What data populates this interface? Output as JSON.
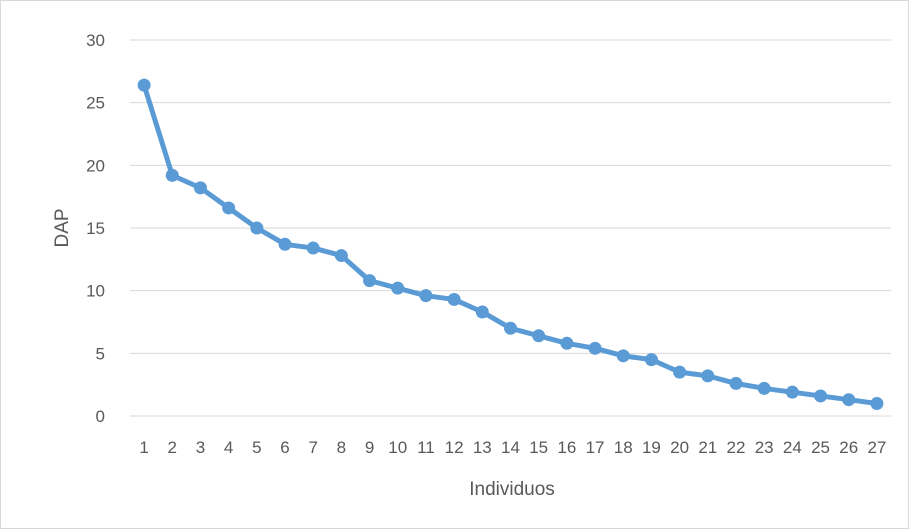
{
  "chart_data": {
    "type": "line",
    "title": "",
    "xlabel": "Individuos",
    "ylabel": "DAP",
    "categories": [
      "1",
      "2",
      "3",
      "4",
      "5",
      "6",
      "7",
      "8",
      "9",
      "10",
      "11",
      "12",
      "13",
      "14",
      "15",
      "16",
      "17",
      "18",
      "19",
      "20",
      "21",
      "22",
      "23",
      "24",
      "25",
      "26",
      "27"
    ],
    "series": [
      {
        "values": [
          26.4,
          19.2,
          18.2,
          16.6,
          15.0,
          13.7,
          13.4,
          12.8,
          10.8,
          10.2,
          9.6,
          9.3,
          8.3,
          7.0,
          6.4,
          5.8,
          5.4,
          4.8,
          4.5,
          3.5,
          3.2,
          2.6,
          2.2,
          1.9,
          1.6,
          1.3,
          1.0
        ],
        "color": "#5b9bd5"
      }
    ],
    "ylim": [
      0,
      30
    ],
    "yticks": [
      0,
      5,
      10,
      15,
      20,
      25,
      30
    ],
    "grid": true,
    "gridColor": "#d9d9d9",
    "legend": "none"
  }
}
